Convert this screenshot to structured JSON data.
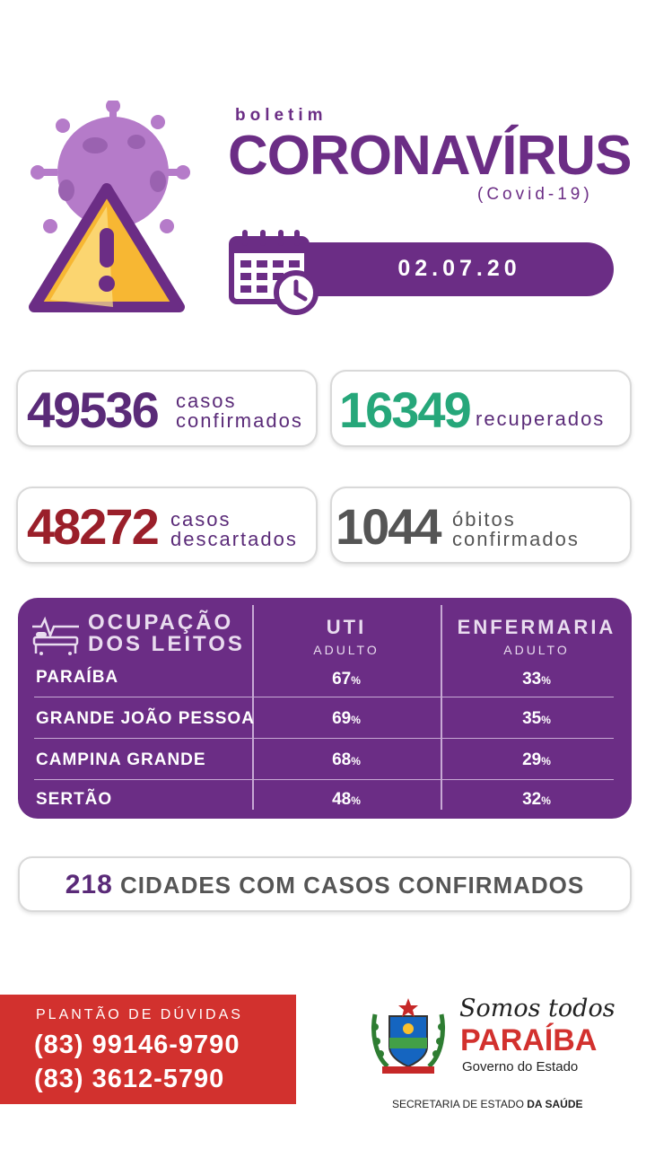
{
  "header": {
    "brand_small": "boletim",
    "brand_title": "CORONAVÍRUS",
    "brand_sub": "(Covid-19)",
    "date": "02.07.20",
    "icons": [
      "virus-warning-icon",
      "calendar-clock-icon"
    ]
  },
  "stats": {
    "confirmed": {
      "value": "49536",
      "label_line1": "casos",
      "label_line2": "confirmados"
    },
    "recovered": {
      "value": "16349",
      "label": "recuperados"
    },
    "discarded": {
      "value": "48272",
      "label_line1": "casos",
      "label_line2": "descartados"
    },
    "deaths": {
      "value": "1044",
      "label_line1": "óbitos",
      "label_line2": "confirmados"
    }
  },
  "beds": {
    "title_line1": "OCUPAÇÃO",
    "title_line2": "DOS LEITOS",
    "col1_title": "UTI",
    "col1_sub": "ADULTO",
    "col2_title": "ENFERMARIA",
    "col2_sub": "ADULTO",
    "pct_sign": "%",
    "rows": [
      {
        "name": "PARAÍBA",
        "uti": "67",
        "enfermaria": "33"
      },
      {
        "name": "GRANDE JOÃO PESSOA",
        "uti": "69",
        "enfermaria": "35"
      },
      {
        "name": "CAMPINA GRANDE",
        "uti": "68",
        "enfermaria": "29"
      },
      {
        "name": "SERTÃO",
        "uti": "48",
        "enfermaria": "32"
      }
    ]
  },
  "cities": {
    "count": "218",
    "label": "CIDADES COM CASOS CONFIRMADOS"
  },
  "help": {
    "label": "PLANTÃO DE DÚVIDAS",
    "phone1": "(83) 99146-9790",
    "phone2": "(83) 3612-5790"
  },
  "footer": {
    "script": "Somos todos",
    "name": "PARAÍBA",
    "sub": "Governo do Estado",
    "secretaria_prefix": "SECRETARIA DE ESTADO",
    "secretaria_bold": "DA SAÚDE"
  },
  "colors": {
    "purple": "#6b2d85",
    "green": "#26a77a",
    "red": "#9a1f2a",
    "help_red": "#d2312e"
  }
}
